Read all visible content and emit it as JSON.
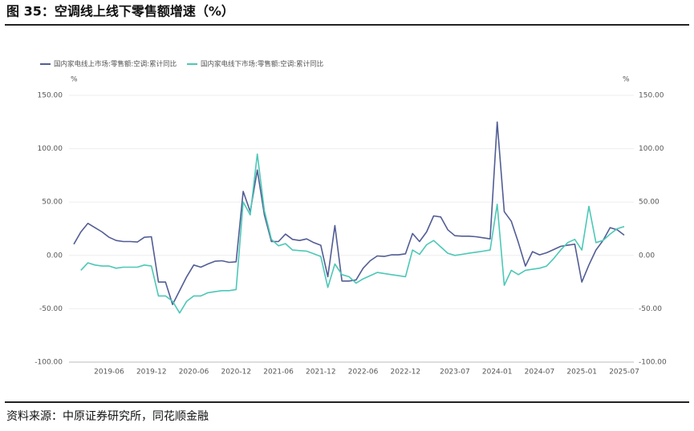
{
  "chart_data": {
    "type": "line",
    "title": "图 35：空调线上线下零售额增速（%）",
    "source": "资料来源：中原证券研究所，同花顺金融",
    "y_unit": "%",
    "y2_unit": "%",
    "categories": [
      null,
      null,
      null,
      null,
      null,
      "2019-06",
      null,
      null,
      null,
      null,
      null,
      "2019-12",
      null,
      null,
      null,
      null,
      null,
      "2020-06",
      null,
      null,
      null,
      null,
      null,
      "2020-12",
      null,
      null,
      null,
      null,
      null,
      "2021-06",
      null,
      null,
      null,
      null,
      null,
      "2021-12",
      null,
      null,
      null,
      null,
      null,
      "2022-06",
      null,
      null,
      null,
      null,
      null,
      "2022-12",
      null,
      null,
      null,
      null,
      null,
      null,
      "2023-07",
      null,
      null,
      null,
      null,
      null,
      "2024-01",
      null,
      null,
      null,
      null,
      null,
      "2024-07",
      null,
      null,
      null,
      null,
      null,
      "2025-01",
      null,
      null,
      null,
      null,
      null,
      "2025-07"
    ],
    "series": [
      {
        "name": "国内家电线上市场:零售额:空调:累计同比",
        "color": "#525d94",
        "values": [
          10.5,
          22,
          30,
          26,
          22,
          17,
          14,
          13,
          13,
          12.5,
          17,
          17.5,
          -25,
          -25,
          -46,
          -33,
          -20,
          -9,
          -11,
          -8,
          -5.5,
          -5,
          -6.5,
          -6,
          60,
          41,
          80,
          38,
          13,
          13,
          20,
          15,
          14,
          15.5,
          12,
          9.5,
          -20,
          28,
          -24,
          -24,
          -23,
          -12,
          -5,
          -0.5,
          -1,
          0.5,
          0.5,
          1.5,
          20.5,
          13,
          22,
          37,
          36,
          24,
          18.5,
          18,
          18,
          17.5,
          16.5,
          15.5,
          125,
          41,
          32,
          12,
          -10,
          3.5,
          0.5,
          2.5,
          5.5,
          8.5,
          9.5,
          10.5,
          -25,
          -9,
          5,
          14,
          26,
          24,
          19
        ]
      },
      {
        "name": "国内家电线下市场:零售额:空调:累计同比",
        "color": "#4cc8b6",
        "values": [
          null,
          -14,
          -7,
          -9,
          -10,
          -10,
          -12,
          -11,
          -11,
          -11,
          -9,
          -10,
          -38,
          -38,
          -43,
          -54,
          -43,
          -38,
          -38,
          -35,
          -34,
          -33,
          -33,
          -32,
          50,
          38,
          95,
          42,
          15,
          9,
          11,
          5,
          4.5,
          4,
          1.5,
          -1,
          -30,
          -8,
          -18,
          -20,
          -26,
          -22,
          -19,
          -16,
          -17,
          -18,
          -19,
          -20,
          5,
          1,
          10,
          14,
          8,
          2,
          0,
          1,
          2,
          3,
          4,
          5,
          48,
          -28,
          -14,
          -18,
          -14,
          -13,
          -12,
          -10,
          -3,
          5,
          12,
          15,
          5,
          46,
          12,
          14,
          20,
          25,
          27
        ]
      }
    ],
    "ylim": [
      -100,
      150
    ],
    "yticks": [
      {
        "value": 150,
        "label": "150.00"
      },
      {
        "value": 100,
        "label": "100.00"
      },
      {
        "value": 50,
        "label": "50.00"
      },
      {
        "value": 0,
        "label": "0.00"
      },
      {
        "value": -50,
        "label": "-50.00"
      },
      {
        "value": -100,
        "label": "-100.00"
      }
    ],
    "y2lim": [
      -100,
      150
    ],
    "y2ticks": [
      {
        "value": 150,
        "label": "150.00"
      },
      {
        "value": 100,
        "label": "100.00"
      },
      {
        "value": 50,
        "label": "50.00"
      },
      {
        "value": 0,
        "label": "0.00"
      },
      {
        "value": -50,
        "label": "-50.00"
      },
      {
        "value": -100,
        "label": "-100.00"
      }
    ],
    "grid": true,
    "legend": "top-left"
  }
}
